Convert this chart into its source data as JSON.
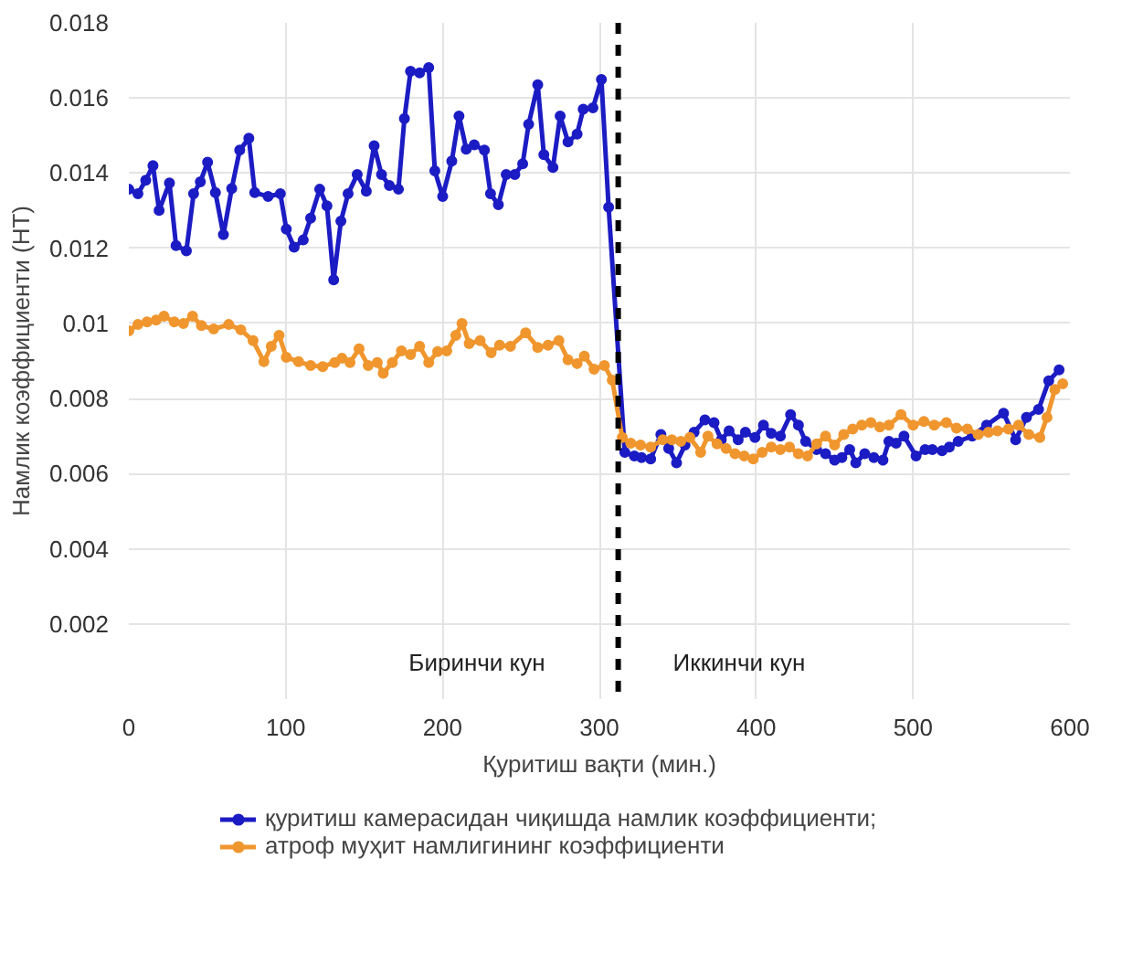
{
  "chart_data": {
    "type": "line",
    "xlabel": "Қуритиш вақти (мин.)",
    "ylabel": "Намлик коэффициенти (НТ)",
    "xlim": [
      0,
      600
    ],
    "xticks": [
      0,
      100,
      200,
      300,
      400,
      500,
      600
    ],
    "ylim": [
      0,
      0.018
    ],
    "yticks": [
      0.002,
      0.004,
      0.006,
      0.008,
      0.01,
      0.012,
      0.014,
      0.016,
      0.018
    ],
    "grid": true,
    "legend": "bottom",
    "marker": "circle",
    "line_style": "solid",
    "ref_lines": [
      {
        "axis": "x",
        "value": 312,
        "label": null,
        "color": "#000000",
        "line_style": "dashed"
      }
    ],
    "annotations": [
      "Биринчи кун",
      "Иккинчи кун"
    ],
    "series": [
      {
        "name": "қуритиш камерасидан чиқишда намлик коэффициенти;",
        "color": "#1c1cc4",
        "x": [
          0,
          5.8,
          10.8,
          15.4,
          19.3,
          25.9,
          30.1,
          36.7,
          41.3,
          45.6,
          50.2,
          55.2,
          60.3,
          65.6,
          70.7,
          76.5,
          80.3,
          88.8,
          96.6,
          100.4,
          105.4,
          111.2,
          115.9,
          121.7,
          126.3,
          130.6,
          135.2,
          139.8,
          145.6,
          151.4,
          156.4,
          161.1,
          166.1,
          171.9,
          175.7,
          179.6,
          185.4,
          191.2,
          195.1,
          200.1,
          205.9,
          210.5,
          215.1,
          220.2,
          226.7,
          230.6,
          235.6,
          240.6,
          246.1,
          251.1,
          254.9,
          260.7,
          264.6,
          270.4,
          275,
          280,
          285.8,
          289.7,
          295.9,
          301.3,
          305.9,
          316.2,
          322.3,
          326.9,
          332.7,
          339.2,
          344.2,
          349.2,
          354.6,
          360.4,
          367.3,
          373.1,
          377.7,
          382.7,
          388.5,
          393.1,
          399.2,
          404.6,
          409.6,
          415.4,
          421.9,
          426.9,
          431.5,
          438.5,
          444.2,
          450,
          454.6,
          459.6,
          463.5,
          469.2,
          475,
          480.8,
          484.6,
          489.2,
          494.2,
          501.9,
          507.7,
          512.3,
          518.5,
          523.1,
          528.8,
          537.7,
          546.9,
          557.7,
          565.4,
          572.3,
          580,
          586.5,
          593.1
        ],
        "values": [
          0.01357,
          0.01345,
          0.01381,
          0.0142,
          0.01301,
          0.01374,
          0.01207,
          0.01193,
          0.01345,
          0.01377,
          0.01429,
          0.01348,
          0.01236,
          0.01359,
          0.01461,
          0.01493,
          0.01348,
          0.01338,
          0.01345,
          0.01251,
          0.01203,
          0.01222,
          0.0128,
          0.01357,
          0.01313,
          0.01116,
          0.01272,
          0.01345,
          0.01396,
          0.01352,
          0.01473,
          0.01396,
          0.01367,
          0.01357,
          0.01545,
          0.01671,
          0.01667,
          0.01681,
          0.01406,
          0.01338,
          0.01432,
          0.01552,
          0.01464,
          0.01475,
          0.01461,
          0.01345,
          0.01316,
          0.01396,
          0.01396,
          0.01425,
          0.0153,
          0.01635,
          0.01449,
          0.01415,
          0.01552,
          0.01483,
          0.01504,
          0.0157,
          0.01574,
          0.01649,
          0.01309,
          0.00657,
          0.00647,
          0.00643,
          0.00639,
          0.00704,
          0.00667,
          0.00629,
          0.00676,
          0.0071,
          0.00743,
          0.00736,
          0.0069,
          0.00714,
          0.0069,
          0.0071,
          0.00696,
          0.00729,
          0.00707,
          0.007,
          0.00757,
          0.00729,
          0.00686,
          0.00664,
          0.00653,
          0.00636,
          0.00643,
          0.00664,
          0.00629,
          0.00653,
          0.00643,
          0.00636,
          0.00686,
          0.00681,
          0.007,
          0.00647,
          0.00664,
          0.00664,
          0.00661,
          0.00671,
          0.00686,
          0.007,
          0.00729,
          0.00761,
          0.0069,
          0.0075,
          0.00771,
          0.00847,
          0.00876
        ]
      },
      {
        "name": "атроф муҳит намлигининг коэффициенти",
        "color": "#f0962e",
        "x": [
          0,
          5.8,
          11.6,
          17.4,
          22.4,
          29,
          34.8,
          40.6,
          46.3,
          54.1,
          63.7,
          71.4,
          79.2,
          86.1,
          90.8,
          95.8,
          100.4,
          108.2,
          115.9,
          123.6,
          131.3,
          135.9,
          141,
          146.8,
          152.6,
          158.4,
          162.2,
          168,
          173.8,
          179.6,
          185.4,
          191.2,
          196.9,
          202.7,
          208.5,
          212.4,
          217,
          224,
          231,
          236.4,
          243.3,
          253,
          260.7,
          267.3,
          274.2,
          280,
          285.8,
          290.4,
          296.6,
          303.2,
          308.2,
          314.6,
          320,
          326.2,
          332.7,
          340.4,
          346.2,
          351.9,
          357.7,
          364.6,
          369.2,
          375,
          380.8,
          386.5,
          392.3,
          398.1,
          403.8,
          409.6,
          415.4,
          421.2,
          426.9,
          432.7,
          438.5,
          444.2,
          450,
          455.8,
          461.5,
          467.3,
          473.1,
          478.8,
          484.6,
          492.3,
          500,
          506.9,
          513.5,
          521.2,
          527.7,
          534.6,
          541.5,
          548.1,
          553.8,
          560.8,
          567.3,
          573.8,
          580.8,
          585.4,
          590.4,
          595.4
        ],
        "values": [
          0.0098,
          0.00997,
          0.01004,
          0.01009,
          0.01019,
          0.01004,
          0.01,
          0.01019,
          0.00994,
          0.00985,
          0.00997,
          0.00983,
          0.00954,
          0.00898,
          0.00939,
          0.00968,
          0.0091,
          0.00898,
          0.00888,
          0.00885,
          0.00896,
          0.00907,
          0.00896,
          0.00932,
          0.00888,
          0.00896,
          0.00867,
          0.00896,
          0.00927,
          0.00917,
          0.00939,
          0.00896,
          0.00925,
          0.00927,
          0.00968,
          0.01,
          0.00946,
          0.00954,
          0.00922,
          0.00942,
          0.00939,
          0.00975,
          0.00936,
          0.00942,
          0.00954,
          0.00903,
          0.00893,
          0.00913,
          0.00878,
          0.00888,
          0.00849,
          0.00696,
          0.00681,
          0.00676,
          0.00671,
          0.0069,
          0.0069,
          0.00686,
          0.00696,
          0.00657,
          0.007,
          0.00679,
          0.00667,
          0.00653,
          0.00647,
          0.00639,
          0.00657,
          0.00671,
          0.00664,
          0.00671,
          0.00653,
          0.00647,
          0.00679,
          0.007,
          0.00676,
          0.00704,
          0.00719,
          0.00729,
          0.00736,
          0.00724,
          0.00729,
          0.00757,
          0.00729,
          0.00739,
          0.00729,
          0.00736,
          0.00721,
          0.00719,
          0.00704,
          0.0071,
          0.00714,
          0.00719,
          0.00729,
          0.00704,
          0.00696,
          0.0075,
          0.00824,
          0.00839
        ]
      }
    ]
  }
}
